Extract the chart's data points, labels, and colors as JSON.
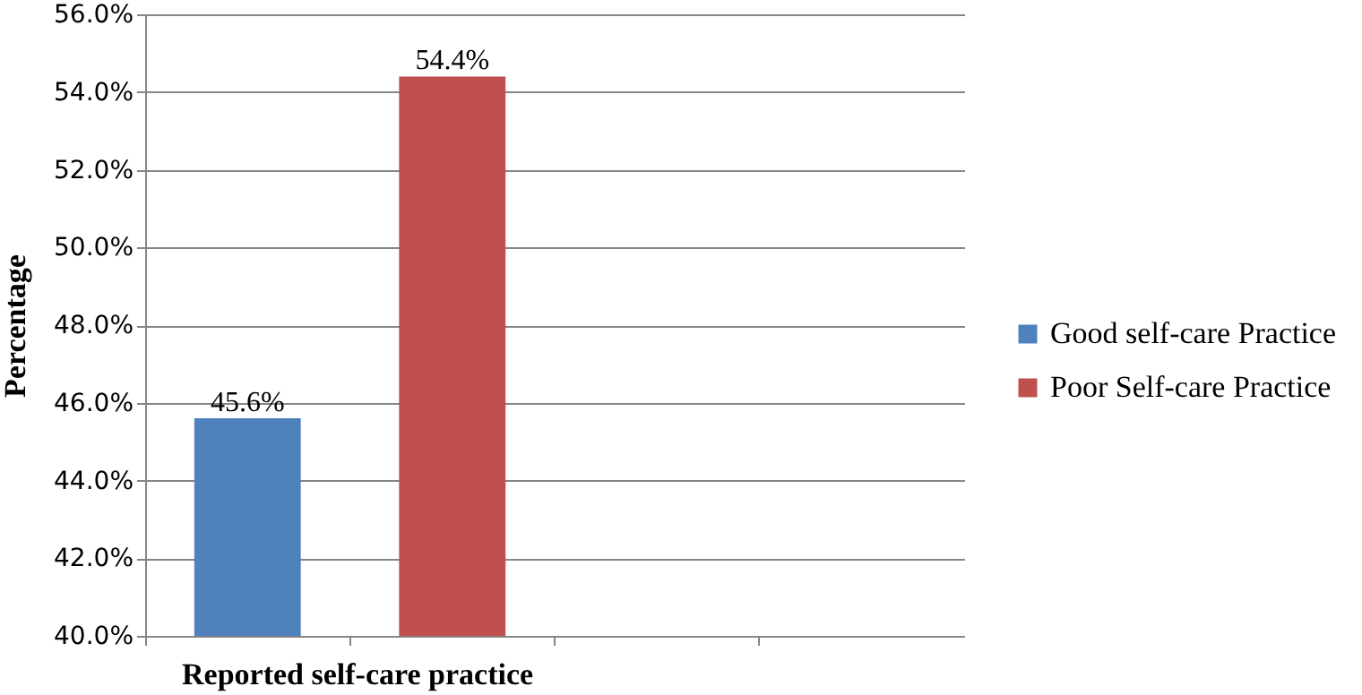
{
  "chart_data": {
    "type": "bar",
    "xlabel": "Reported self-care practice",
    "ylabel": "Percentage",
    "categories": [
      null,
      null,
      null,
      null
    ],
    "series": [
      {
        "name": "Good self-care Practice",
        "color": "#4f81bd",
        "values": [
          45.6,
          null,
          null,
          null
        ],
        "value_labels": [
          "45.6%",
          null,
          null,
          null
        ]
      },
      {
        "name": "Poor Self-care Practice",
        "color": "#c0504d",
        "values": [
          null,
          54.4,
          null,
          null
        ],
        "value_labels": [
          null,
          "54.4%",
          null,
          null
        ]
      }
    ],
    "ylim": [
      40,
      56
    ],
    "yticks": [
      {
        "value": 40,
        "label": "40.0%"
      },
      {
        "value": 42,
        "label": "42.0%"
      },
      {
        "value": 44,
        "label": "44.0%"
      },
      {
        "value": 46,
        "label": "46.0%"
      },
      {
        "value": 48,
        "label": "48.0%"
      },
      {
        "value": 50,
        "label": "50.0%"
      },
      {
        "value": 52,
        "label": "52.0%"
      },
      {
        "value": 54,
        "label": "54.0%"
      },
      {
        "value": 56,
        "label": "56.0%"
      }
    ],
    "grid": "y",
    "legend": "right",
    "tick_labels": "y"
  }
}
